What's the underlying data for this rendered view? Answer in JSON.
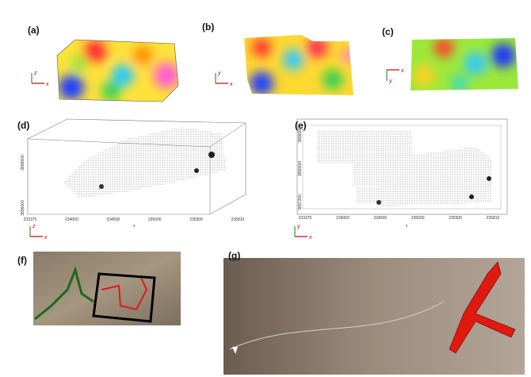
{
  "panels": [
    {
      "label": "(a)",
      "axes": [
        "z",
        "x"
      ]
    },
    {
      "label": "(b)",
      "axes": [
        "y",
        "x"
      ]
    },
    {
      "label": "(c)",
      "axes": [
        "y",
        "x"
      ]
    },
    {
      "label": "(d)",
      "axes": [
        "z",
        "x"
      ],
      "x_ticks": [
        "233375",
        "234000",
        "234500",
        "235000",
        "235500",
        "235810"
      ],
      "y_ticks": [
        "3896000",
        "3896600"
      ],
      "x_title": "x"
    },
    {
      "label": "(e)",
      "axes": [
        "y",
        "x"
      ],
      "x_ticks": [
        "233375",
        "234000",
        "234500",
        "235000",
        "235500",
        "235810"
      ],
      "y_ticks": [
        "3897200",
        "3896600",
        "3896000"
      ],
      "x_title": "x"
    },
    {
      "label": "(f)"
    },
    {
      "label": "(g)"
    }
  ]
}
